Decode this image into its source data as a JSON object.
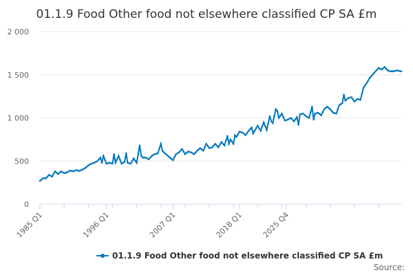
{
  "chart_data": {
    "type": "line",
    "title": "01.1.9 Food Other food not elsewhere classified CP SA £m",
    "xlabel": "",
    "ylabel": "",
    "ylim": [
      0,
      2000
    ],
    "y_ticks": [
      0,
      500,
      1000,
      1500,
      2000
    ],
    "y_tick_labels": [
      "0",
      "500",
      "1 000",
      "1 500",
      "2 000"
    ],
    "x_ticks": [
      "1985 Q1",
      "1996 Q1",
      "2007 Q1",
      "2018 Q1",
      "2025 Q4"
    ],
    "grid": true,
    "legend_position": "bottom-center",
    "color": "#0077bb",
    "source_label": "Source:",
    "anchors": [
      [
        0,
        270
      ],
      [
        2,
        300
      ],
      [
        4,
        300
      ],
      [
        6,
        340
      ],
      [
        8,
        320
      ],
      [
        10,
        380
      ],
      [
        12,
        350
      ],
      [
        14,
        380
      ],
      [
        16,
        360
      ],
      [
        18,
        370
      ],
      [
        20,
        390
      ],
      [
        22,
        380
      ],
      [
        24,
        395
      ],
      [
        26,
        385
      ],
      [
        28,
        400
      ],
      [
        30,
        420
      ],
      [
        32,
        450
      ],
      [
        34,
        470
      ],
      [
        36,
        480
      ],
      [
        38,
        500
      ],
      [
        40,
        540
      ],
      [
        41,
        480
      ],
      [
        42,
        560
      ],
      [
        44,
        470
      ],
      [
        46,
        480
      ],
      [
        48,
        470
      ],
      [
        49,
        580
      ],
      [
        50,
        480
      ],
      [
        52,
        560
      ],
      [
        54,
        470
      ],
      [
        56,
        490
      ],
      [
        57,
        590
      ],
      [
        58,
        480
      ],
      [
        60,
        470
      ],
      [
        62,
        530
      ],
      [
        64,
        480
      ],
      [
        66,
        680
      ],
      [
        67,
        560
      ],
      [
        68,
        540
      ],
      [
        70,
        540
      ],
      [
        72,
        520
      ],
      [
        74,
        560
      ],
      [
        76,
        580
      ],
      [
        78,
        590
      ],
      [
        80,
        700
      ],
      [
        81,
        620
      ],
      [
        82,
        600
      ],
      [
        84,
        570
      ],
      [
        86,
        540
      ],
      [
        88,
        510
      ],
      [
        90,
        580
      ],
      [
        92,
        600
      ],
      [
        94,
        640
      ],
      [
        96,
        580
      ],
      [
        98,
        610
      ],
      [
        100,
        600
      ],
      [
        102,
        580
      ],
      [
        104,
        620
      ],
      [
        106,
        650
      ],
      [
        108,
        620
      ],
      [
        110,
        700
      ],
      [
        112,
        650
      ],
      [
        114,
        660
      ],
      [
        116,
        700
      ],
      [
        118,
        660
      ],
      [
        120,
        720
      ],
      [
        122,
        680
      ],
      [
        124,
        790
      ],
      [
        125,
        700
      ],
      [
        126,
        750
      ],
      [
        128,
        700
      ],
      [
        129,
        800
      ],
      [
        130,
        780
      ],
      [
        132,
        840
      ],
      [
        134,
        830
      ],
      [
        136,
        800
      ],
      [
        138,
        850
      ],
      [
        140,
        890
      ],
      [
        141,
        820
      ],
      [
        142,
        850
      ],
      [
        144,
        910
      ],
      [
        146,
        850
      ],
      [
        148,
        950
      ],
      [
        150,
        860
      ],
      [
        152,
        1020
      ],
      [
        153,
        960
      ],
      [
        154,
        940
      ],
      [
        156,
        1100
      ],
      [
        157,
        1080
      ],
      [
        158,
        1000
      ],
      [
        160,
        1050
      ],
      [
        162,
        970
      ],
      [
        164,
        980
      ],
      [
        166,
        1000
      ],
      [
        168,
        960
      ],
      [
        170,
        1010
      ],
      [
        171,
        920
      ],
      [
        172,
        1040
      ],
      [
        174,
        1050
      ],
      [
        176,
        1020
      ],
      [
        178,
        1000
      ],
      [
        180,
        1130
      ],
      [
        181,
        980
      ],
      [
        182,
        1050
      ],
      [
        184,
        1060
      ],
      [
        186,
        1030
      ],
      [
        188,
        1100
      ],
      [
        190,
        1130
      ],
      [
        192,
        1100
      ],
      [
        194,
        1060
      ],
      [
        196,
        1050
      ],
      [
        198,
        1150
      ],
      [
        200,
        1170
      ],
      [
        201,
        1270
      ],
      [
        202,
        1200
      ],
      [
        204,
        1230
      ],
      [
        206,
        1240
      ],
      [
        208,
        1190
      ],
      [
        210,
        1220
      ],
      [
        212,
        1210
      ],
      [
        214,
        1350
      ],
      [
        216,
        1400
      ],
      [
        218,
        1460
      ],
      [
        220,
        1500
      ],
      [
        222,
        1540
      ],
      [
        224,
        1580
      ],
      [
        226,
        1560
      ],
      [
        228,
        1590
      ],
      [
        230,
        1550
      ],
      [
        232,
        1540
      ],
      [
        234,
        1540
      ],
      [
        236,
        1550
      ],
      [
        239,
        1540
      ]
    ],
    "series": [
      {
        "name": "01.1.9 Food Other food not elsewhere classified CP SA £m",
        "x": [],
        "values": []
      }
    ]
  }
}
